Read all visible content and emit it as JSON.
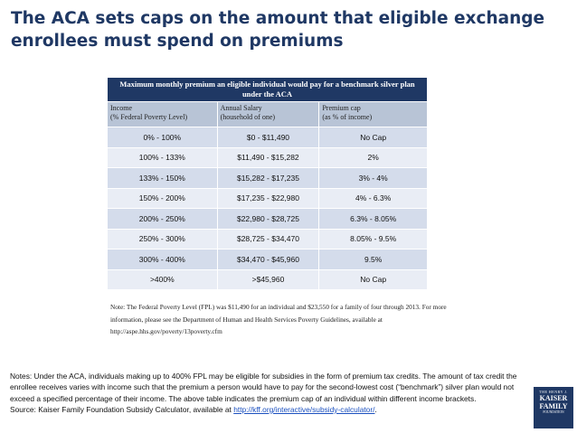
{
  "title": "The ACA sets caps on the amount that eligible exchange enrollees must spend on premiums",
  "table": {
    "header": "Maximum  monthly premium an eligible individual would pay for a benchmark silver plan under the ACA",
    "columns": [
      "Income\n(% Federal Poverty Level)",
      "Annual Salary\n(household of one)",
      "Premium  cap\n(as % of income)"
    ],
    "rows": [
      [
        "0% - 100%",
        "$0 - $11,490",
        "No Cap"
      ],
      [
        "100% - 133%",
        "$11,490 - $15,282",
        "2%"
      ],
      [
        "133% - 150%",
        "$15,282 - $17,235",
        "3% - 4%"
      ],
      [
        "150% - 200%",
        "$17,235 - $22,980",
        "4% - 6.3%"
      ],
      [
        "200% - 250%",
        "$22,980 - $28,725",
        "6.3% - 8.05%"
      ],
      [
        "250% - 300%",
        "$28,725 - $34,470",
        "8.05% - 9.5%"
      ],
      [
        "300% - 400%",
        "$34,470 - $45,960",
        "9.5%"
      ],
      [
        ">400%",
        ">$45,960",
        "No Cap"
      ]
    ]
  },
  "table_note": "Note: The Federal Poverty Level (FPL) was $11,490 for an individual and $23,550 for a family of four through 2013. For more information, please see the Department of Human and Health Services Poverty Guidelines, available at http://aspe.hhs.gov/poverty/13poverty.cfm",
  "notes": {
    "text": "Notes: Under the ACA, individuals making up to 400% FPL may be eligible for subsidies in the form of premium tax credits. The amount of tax credit the enrollee receives varies with income such that the premium a person would have to pay for the second-lowest cost (“benchmark”) silver plan would not exceed a specified percentage  of their income. The above table indicates the premium cap of an individual within different income brackets.",
    "source_prefix": "Source: Kaiser Family Foundation Subsidy Calculator, available at ",
    "source_link": "http://kff.org/interactive/subsidy-calculator/",
    "source_suffix": "."
  },
  "logo": {
    "line1": "THE HENRY J.",
    "line2": "KAISER",
    "line3": "FAMILY",
    "line4": "FOUNDATION"
  },
  "colors": {
    "title": "#1f3864",
    "header_bg": "#1f3864",
    "subheader_bg": "#b8c4d6",
    "row_odd": "#d4dceb",
    "row_even": "#e9edf5",
    "link": "#1a4fbf"
  }
}
